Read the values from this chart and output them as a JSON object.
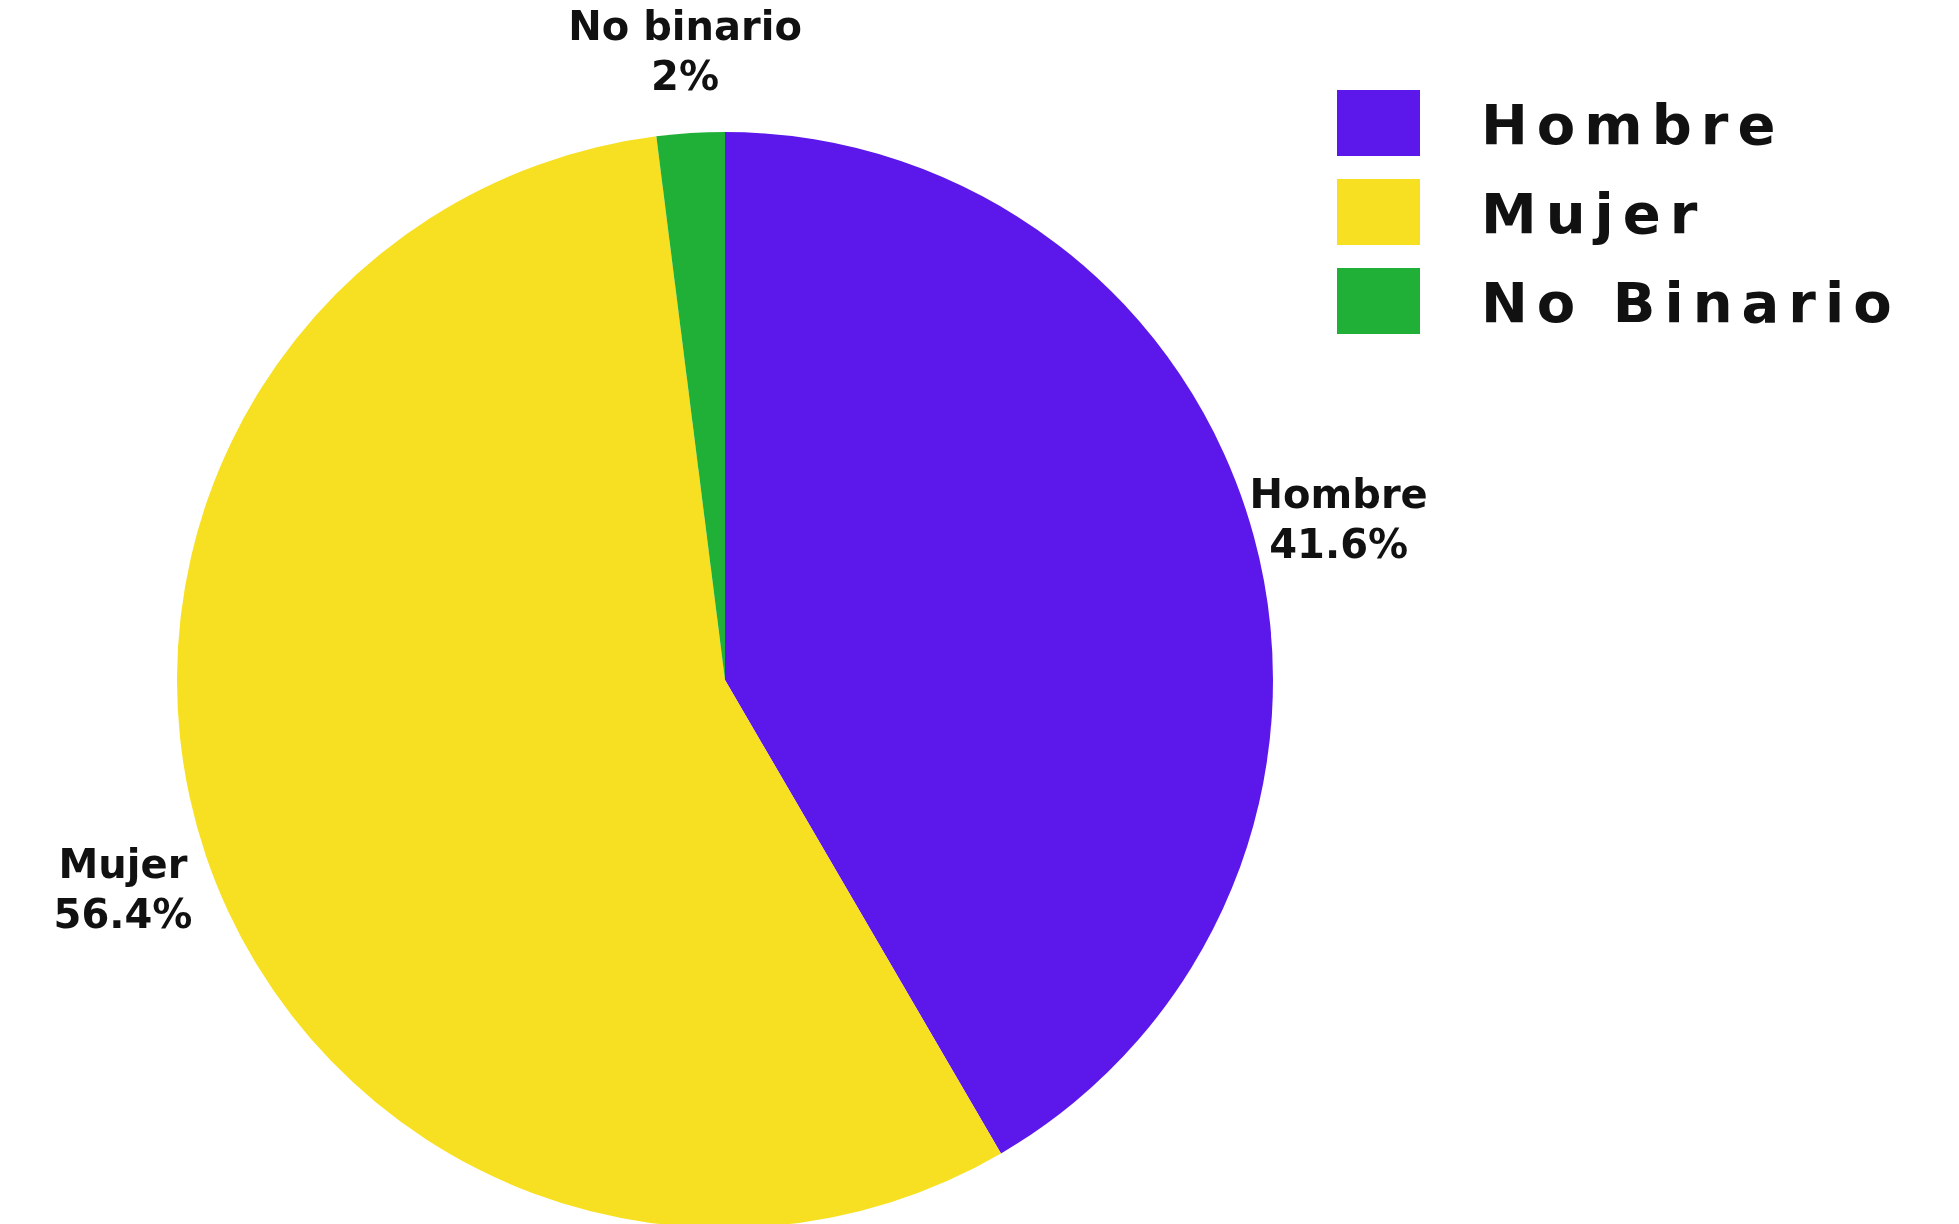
{
  "chart_data": {
    "type": "pie",
    "categories": [
      "Hombre",
      "Mujer",
      "No Binario"
    ],
    "values": [
      41.6,
      56.4,
      2
    ],
    "colors": [
      "#5c17eb",
      "#f7e022",
      "#20b038"
    ],
    "value_labels": [
      "41.6%",
      "56.4%",
      "2%"
    ],
    "annotations": [
      "Hombre",
      "Mujer",
      "No binario"
    ],
    "legend": "top right"
  }
}
